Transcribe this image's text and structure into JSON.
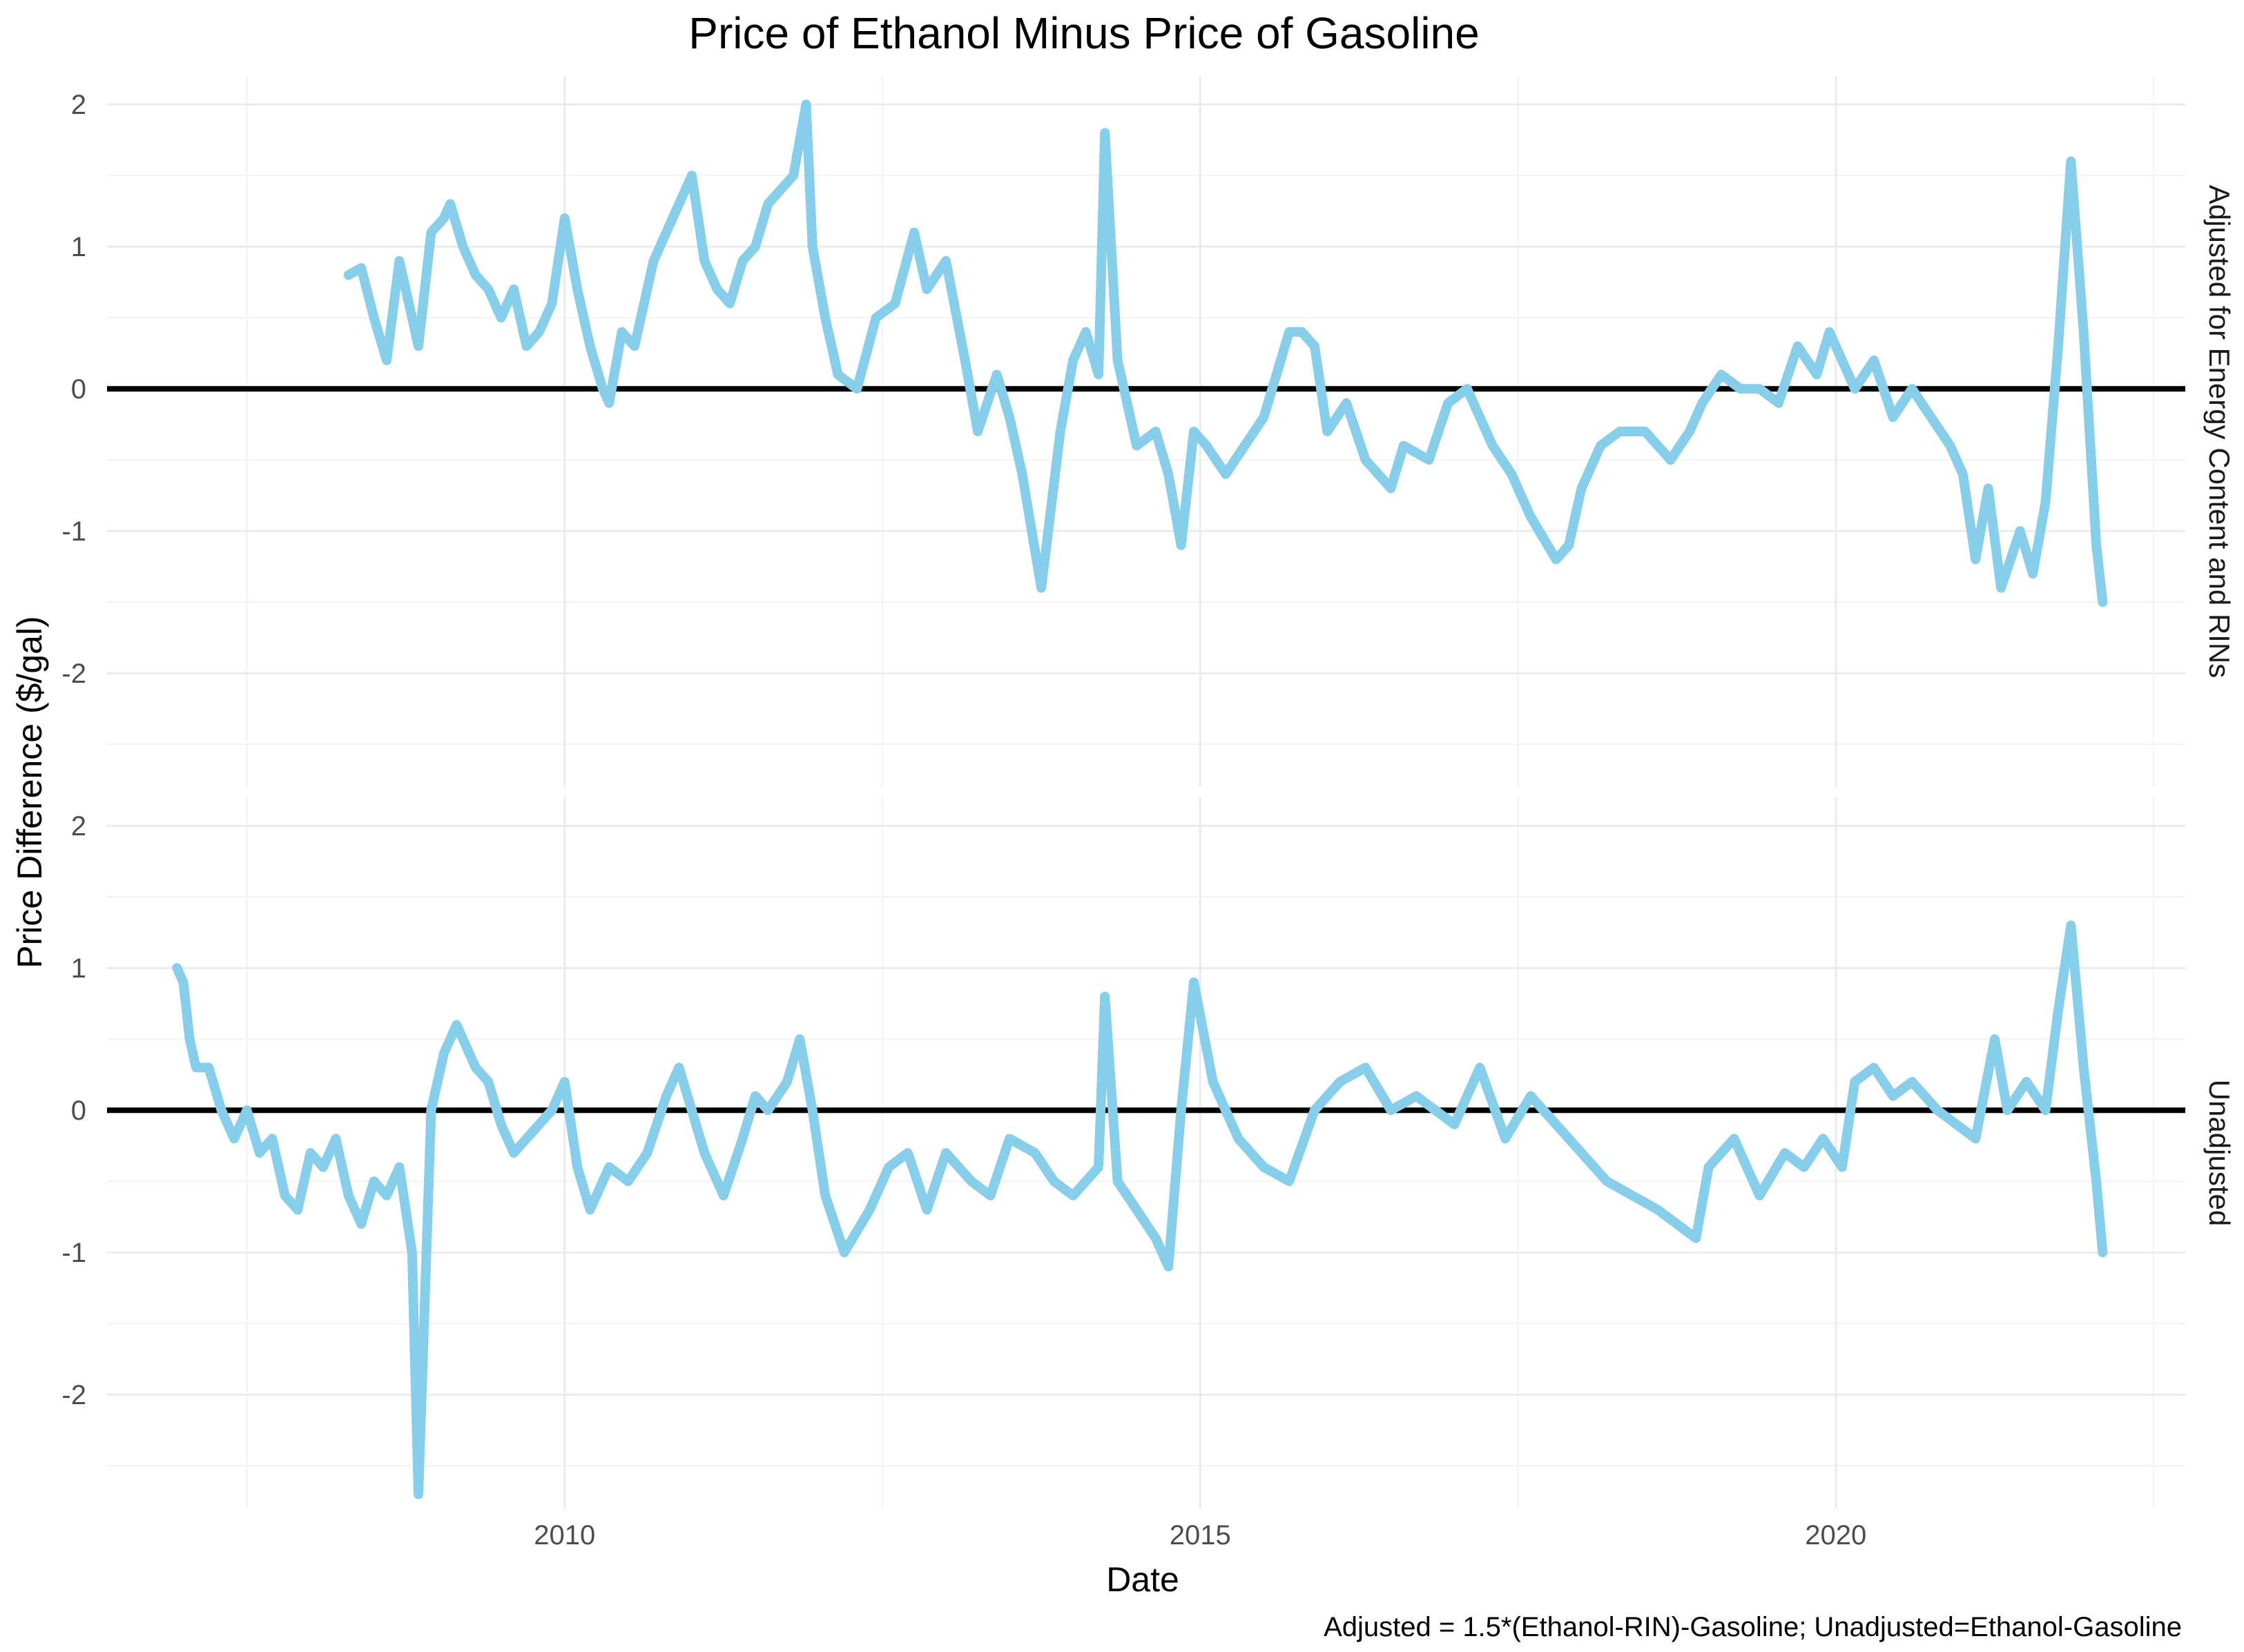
{
  "chart_data": {
    "type": "line",
    "title": "Price of Ethanol Minus Price of Gasoline",
    "xlabel": "Date",
    "ylabel": "Price Difference ($/gal)",
    "caption": "Adjusted = 1.5*(Ethanol-RIN)-Gasoline;  Unadjusted=Ethanol-Gasoline",
    "xlim": [
      2006.4,
      2022.75
    ],
    "ylim": [
      -2.8,
      2.2
    ],
    "x_ticks": [
      2010,
      2015,
      2020
    ],
    "x_tick_labels": [
      "2010",
      "2015",
      "2020"
    ],
    "y_ticks": [
      -2,
      -1,
      0,
      1,
      2
    ],
    "y_tick_labels": [
      "-2",
      "-1",
      "0",
      "1",
      "2"
    ],
    "series_color": "#87CEEB",
    "reference_line": {
      "y": 0,
      "color": "#000000"
    },
    "panels": [
      {
        "name": "Adjusted for Energy Content and RINs",
        "x": [
          2008.3,
          2008.4,
          2008.5,
          2008.6,
          2008.7,
          2008.8,
          2008.85,
          2008.95,
          2009.05,
          2009.1,
          2009.2,
          2009.3,
          2009.4,
          2009.5,
          2009.6,
          2009.7,
          2009.8,
          2009.9,
          2010.0,
          2010.1,
          2010.2,
          2010.3,
          2010.35,
          2010.45,
          2010.55,
          2010.7,
          2010.85,
          2011.0,
          2011.1,
          2011.2,
          2011.3,
          2011.4,
          2011.5,
          2011.6,
          2011.7,
          2011.8,
          2011.9,
          2011.95,
          2012.05,
          2012.15,
          2012.3,
          2012.45,
          2012.6,
          2012.75,
          2012.85,
          2013.0,
          2013.15,
          2013.25,
          2013.4,
          2013.5,
          2013.6,
          2013.75,
          2013.9,
          2014.0,
          2014.1,
          2014.2,
          2014.25,
          2014.35,
          2014.5,
          2014.65,
          2014.75,
          2014.85,
          2014.95,
          2015.05,
          2015.2,
          2015.35,
          2015.5,
          2015.7,
          2015.8,
          2015.9,
          2016.0,
          2016.15,
          2016.3,
          2016.5,
          2016.6,
          2016.8,
          2016.95,
          2017.1,
          2017.3,
          2017.45,
          2017.6,
          2017.8,
          2017.9,
          2018.0,
          2018.15,
          2018.3,
          2018.5,
          2018.7,
          2018.85,
          2018.95,
          2019.1,
          2019.25,
          2019.4,
          2019.55,
          2019.7,
          2019.85,
          2019.95,
          2020.05,
          2020.15,
          2020.3,
          2020.45,
          2020.6,
          2020.75,
          2020.9,
          2021.0,
          2021.1,
          2021.2,
          2021.3,
          2021.45,
          2021.55,
          2021.65,
          2021.75,
          2021.85,
          2021.95,
          2022.05,
          2022.1
        ],
        "y": [
          0.8,
          0.85,
          0.5,
          0.2,
          0.9,
          0.5,
          0.3,
          1.1,
          1.2,
          1.3,
          1.0,
          0.8,
          0.7,
          0.5,
          0.7,
          0.3,
          0.4,
          0.6,
          1.2,
          0.7,
          0.3,
          0.0,
          -0.1,
          0.4,
          0.3,
          0.9,
          1.2,
          1.5,
          0.9,
          0.7,
          0.6,
          0.9,
          1.0,
          1.3,
          1.4,
          1.5,
          2.0,
          1.0,
          0.5,
          0.1,
          0.0,
          0.5,
          0.6,
          1.1,
          0.7,
          0.9,
          0.2,
          -0.3,
          0.1,
          -0.2,
          -0.6,
          -1.4,
          -0.3,
          0.2,
          0.4,
          0.1,
          1.8,
          0.2,
          -0.4,
          -0.3,
          -0.6,
          -1.1,
          -0.3,
          -0.4,
          -0.6,
          -0.4,
          -0.2,
          0.4,
          0.4,
          0.3,
          -0.3,
          -0.1,
          -0.5,
          -0.7,
          -0.4,
          -0.5,
          -0.1,
          0.0,
          -0.4,
          -0.6,
          -0.9,
          -1.2,
          -1.1,
          -0.7,
          -0.4,
          -0.3,
          -0.3,
          -0.5,
          -0.3,
          -0.1,
          0.1,
          0.0,
          0.0,
          -0.1,
          0.3,
          0.1,
          0.4,
          0.2,
          0.0,
          0.2,
          -0.2,
          0.0,
          -0.2,
          -0.4,
          -0.6,
          -1.2,
          -0.7,
          -1.4,
          -1.0,
          -1.3,
          -0.8,
          0.3,
          1.6,
          0.4,
          -1.1,
          -1.5
        ]
      },
      {
        "name": "Unadjusted",
        "x": [
          2006.95,
          2007.0,
          2007.05,
          2007.1,
          2007.2,
          2007.3,
          2007.4,
          2007.5,
          2007.6,
          2007.7,
          2007.8,
          2007.9,
          2008.0,
          2008.1,
          2008.2,
          2008.3,
          2008.4,
          2008.5,
          2008.6,
          2008.7,
          2008.8,
          2008.85,
          2008.95,
          2009.05,
          2009.15,
          2009.3,
          2009.4,
          2009.5,
          2009.6,
          2009.7,
          2009.8,
          2009.9,
          2010.0,
          2010.1,
          2010.2,
          2010.35,
          2010.5,
          2010.65,
          2010.8,
          2010.9,
          2011.0,
          2011.1,
          2011.25,
          2011.4,
          2011.5,
          2011.6,
          2011.75,
          2011.85,
          2011.95,
          2012.05,
          2012.2,
          2012.4,
          2012.55,
          2012.7,
          2012.85,
          2013.0,
          2013.2,
          2013.35,
          2013.5,
          2013.7,
          2013.85,
          2014.0,
          2014.1,
          2014.2,
          2014.25,
          2014.35,
          2014.5,
          2014.65,
          2014.75,
          2014.85,
          2014.95,
          2015.1,
          2015.3,
          2015.5,
          2015.7,
          2015.9,
          2016.1,
          2016.3,
          2016.5,
          2016.7,
          2016.85,
          2017.0,
          2017.2,
          2017.4,
          2017.6,
          2017.8,
          2018.0,
          2018.2,
          2018.4,
          2018.6,
          2018.75,
          2018.9,
          2019.0,
          2019.2,
          2019.4,
          2019.6,
          2019.75,
          2019.9,
          2020.05,
          2020.15,
          2020.3,
          2020.45,
          2020.6,
          2020.8,
          2020.95,
          2021.1,
          2021.25,
          2021.35,
          2021.5,
          2021.65,
          2021.75,
          2021.85,
          2021.95,
          2022.05,
          2022.1
        ],
        "y": [
          1.0,
          0.9,
          0.5,
          0.3,
          0.3,
          0.0,
          -0.2,
          0.0,
          -0.3,
          -0.2,
          -0.6,
          -0.7,
          -0.3,
          -0.4,
          -0.2,
          -0.6,
          -0.8,
          -0.5,
          -0.6,
          -0.4,
          -1.0,
          -2.7,
          0.0,
          0.4,
          0.6,
          0.3,
          0.2,
          -0.1,
          -0.3,
          -0.2,
          -0.1,
          0.0,
          0.2,
          -0.4,
          -0.7,
          -0.4,
          -0.5,
          -0.3,
          0.1,
          0.3,
          0.0,
          -0.3,
          -0.6,
          -0.2,
          0.1,
          0.0,
          0.2,
          0.5,
          0.0,
          -0.6,
          -1.0,
          -0.7,
          -0.4,
          -0.3,
          -0.7,
          -0.3,
          -0.5,
          -0.6,
          -0.2,
          -0.3,
          -0.5,
          -0.6,
          -0.5,
          -0.4,
          0.8,
          -0.5,
          -0.7,
          -0.9,
          -1.1,
          0.0,
          0.9,
          0.2,
          -0.2,
          -0.4,
          -0.5,
          0.0,
          0.2,
          0.3,
          0.0,
          0.1,
          0.0,
          -0.1,
          0.3,
          -0.2,
          0.1,
          -0.1,
          -0.3,
          -0.5,
          -0.6,
          -0.7,
          -0.8,
          -0.9,
          -0.4,
          -0.2,
          -0.6,
          -0.3,
          -0.4,
          -0.2,
          -0.4,
          0.2,
          0.3,
          0.1,
          0.2,
          0.0,
          -0.1,
          -0.2,
          0.5,
          0.0,
          0.2,
          0.0,
          0.7,
          1.3,
          0.3,
          -0.5,
          -1.0
        ]
      }
    ]
  }
}
